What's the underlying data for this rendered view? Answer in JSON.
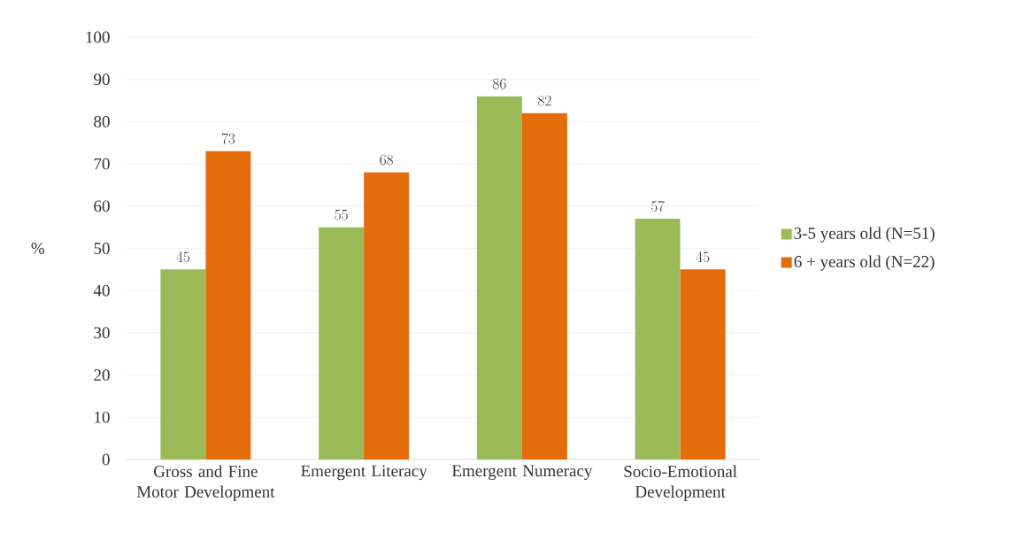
{
  "chart_data": {
    "type": "bar",
    "ylabel": "%",
    "categories": [
      "Gross and Fine Motor Development",
      "Emergent Literacy",
      "Emergent Numeracy",
      "Socio-Emotional Development"
    ],
    "series": [
      {
        "name": "3-5 years old (N=51)",
        "color": "#9bbb59",
        "values": [
          45,
          55,
          86,
          57
        ]
      },
      {
        "name": "6 + years old (N=22)",
        "color": "#e46c0a",
        "values": [
          73,
          68,
          82,
          45
        ]
      }
    ],
    "ylim": [
      0,
      100
    ],
    "yticks": [
      0,
      10,
      20,
      30,
      40,
      50,
      60,
      70,
      80,
      90,
      100
    ],
    "grid": "y",
    "legend": "right",
    "data_labels": true
  }
}
